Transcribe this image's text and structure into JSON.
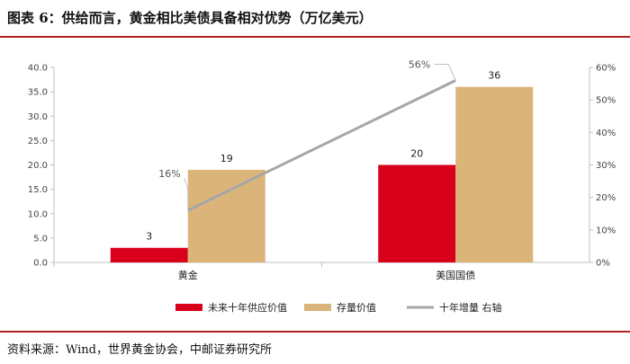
{
  "title": "图表 6：供给而言，黄金相比美债具备相对优势（万亿美元）",
  "source": "资料来源：Wind，世界黄金协会，中邮证券研究所",
  "colors": {
    "accent": "#b22222",
    "supply": "#d9001b",
    "stock": "#dbb47a",
    "increment": "#a6a6a6"
  },
  "chart_data": {
    "type": "bar",
    "categories": [
      "黄金",
      "美国国债"
    ],
    "series": [
      {
        "name": "未来十年供应价值",
        "type": "bar",
        "axis": "left",
        "values": [
          3,
          20
        ],
        "labels": [
          "3",
          "20"
        ]
      },
      {
        "name": "存量价值",
        "type": "bar",
        "axis": "left",
        "values": [
          19,
          36
        ],
        "labels": [
          "19",
          "36"
        ]
      },
      {
        "name": "十年增量  右轴",
        "type": "line",
        "axis": "right",
        "values": [
          0.16,
          0.56
        ],
        "labels": [
          "16%",
          "56%"
        ]
      }
    ],
    "ylim": [
      0,
      40
    ],
    "yticks": [
      "0.0",
      "5.0",
      "10.0",
      "15.0",
      "20.0",
      "25.0",
      "30.0",
      "35.0",
      "40.0"
    ],
    "y2lim": [
      0,
      0.6
    ],
    "y2ticks": [
      "0%",
      "10%",
      "20%",
      "30%",
      "40%",
      "50%",
      "60%"
    ],
    "legend_position": "bottom",
    "grid": false
  }
}
